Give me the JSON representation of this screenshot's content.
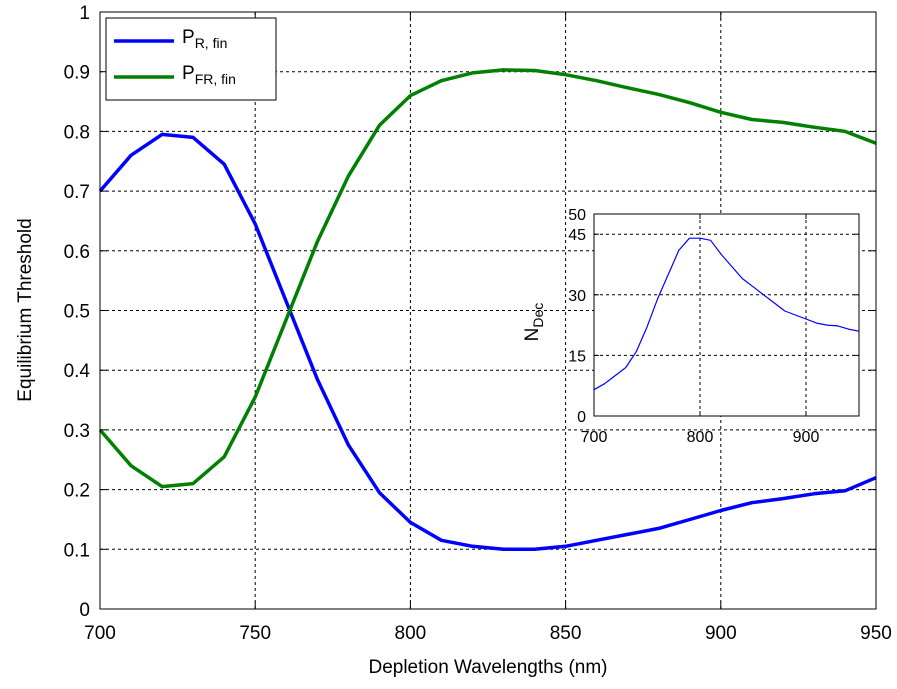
{
  "chart_data": [
    {
      "type": "line",
      "xlabel": "Depletion Wavelengths (nm)",
      "ylabel": "Equilibrium Threshold",
      "xlim": [
        700,
        950
      ],
      "ylim": [
        0,
        1
      ],
      "xticks": [
        700,
        750,
        800,
        850,
        900,
        950
      ],
      "yticks": [
        0,
        0.1,
        0.2,
        0.3,
        0.4,
        0.5,
        0.6,
        0.7,
        0.8,
        0.9,
        1
      ],
      "xtick_labels": [
        "700",
        "750",
        "800",
        "850",
        "900",
        "950"
      ],
      "ytick_labels": [
        "0",
        "0.1",
        "0.2",
        "0.3",
        "0.4",
        "0.5",
        "0.6",
        "0.7",
        "0.8",
        "0.9",
        "1"
      ],
      "grid": true,
      "legend_position": "top-left",
      "x": [
        700,
        710,
        720,
        730,
        740,
        750,
        760,
        770,
        780,
        790,
        800,
        810,
        820,
        830,
        840,
        850,
        860,
        870,
        880,
        890,
        900,
        910,
        920,
        930,
        940,
        950
      ],
      "series": [
        {
          "name": "P",
          "name_sub": "R, fin",
          "color": "#0000ff",
          "values": [
            0.7,
            0.76,
            0.795,
            0.79,
            0.745,
            0.645,
            0.515,
            0.385,
            0.275,
            0.195,
            0.145,
            0.115,
            0.105,
            0.1,
            0.1,
            0.105,
            0.115,
            0.125,
            0.135,
            0.15,
            0.165,
            0.178,
            0.185,
            0.193,
            0.198,
            0.22
          ]
        },
        {
          "name": "P",
          "name_sub": "FR, fin",
          "color": "#008000",
          "values": [
            0.3,
            0.24,
            0.205,
            0.21,
            0.255,
            0.355,
            0.485,
            0.615,
            0.725,
            0.81,
            0.86,
            0.885,
            0.898,
            0.903,
            0.902,
            0.895,
            0.885,
            0.873,
            0.862,
            0.848,
            0.832,
            0.82,
            0.815,
            0.807,
            0.8,
            0.78
          ]
        }
      ]
    },
    {
      "type": "line",
      "ylabel": "N",
      "ylabel_sub": "Dec",
      "xlim": [
        700,
        950
      ],
      "ylim": [
        0,
        50
      ],
      "xticks": [
        700,
        800,
        900
      ],
      "yticks": [
        0,
        15,
        30,
        45,
        50
      ],
      "xtick_labels": [
        "700",
        "800",
        "900"
      ],
      "ytick_labels": [
        "0",
        "15",
        "30",
        "45",
        "50"
      ],
      "grid": true,
      "x": [
        700,
        710,
        720,
        730,
        740,
        750,
        760,
        770,
        780,
        790,
        800,
        810,
        820,
        830,
        840,
        850,
        860,
        870,
        880,
        890,
        900,
        910,
        920,
        930,
        940,
        950
      ],
      "series": [
        {
          "color": "#0000ff",
          "values": [
            6.5,
            8,
            10,
            12,
            16,
            22,
            29,
            35,
            41,
            44,
            44,
            43.5,
            40,
            37,
            34,
            32,
            30,
            28,
            26,
            25,
            24,
            23,
            22.5,
            22.3,
            21.5,
            21
          ]
        }
      ]
    }
  ]
}
